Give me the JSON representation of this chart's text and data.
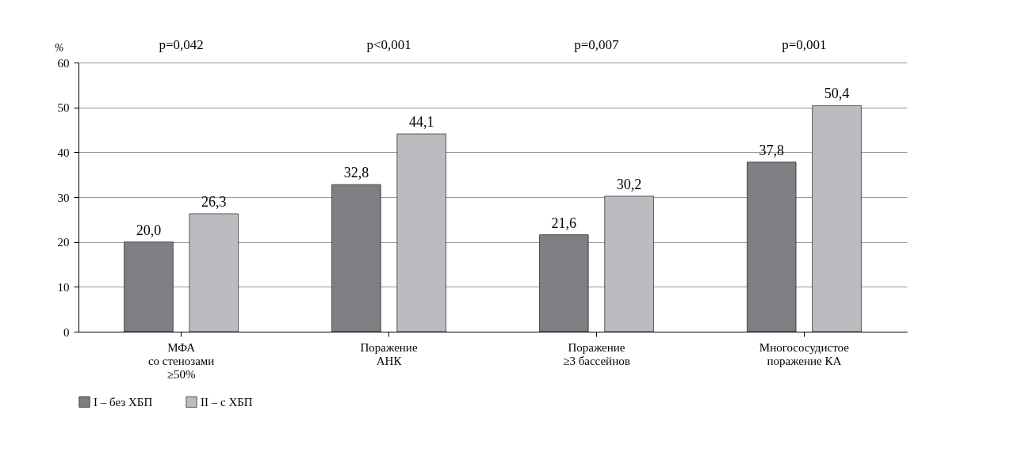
{
  "chart_data": {
    "type": "bar",
    "ylabel": "%",
    "categories": [
      "МФА\nсо стенозами\n≥50%",
      "Поражение\nАНК",
      "Поражение\n≥3 бассейнов",
      "Многососудистое\nпоражение КА"
    ],
    "series": [
      {
        "name": "I – без ХБП",
        "color": "#7f7f83",
        "values": [
          20.0,
          32.8,
          21.6,
          37.8
        ],
        "value_labels": [
          "20,0",
          "32,8",
          "21,6",
          "37,8"
        ]
      },
      {
        "name": "II – с ХБП",
        "color": "#bcbcc0",
        "values": [
          26.3,
          44.1,
          30.2,
          50.4
        ],
        "value_labels": [
          "26,3",
          "44,1",
          "30,2",
          "50,4"
        ]
      }
    ],
    "ylim": [
      0,
      60
    ],
    "yticks": [
      0,
      10,
      20,
      30,
      40,
      50,
      60
    ],
    "grid": "y",
    "legend": "bottom left",
    "annotations": [
      "p=0,042",
      "p<0,001",
      "p=0,007",
      "p=0,001"
    ]
  }
}
